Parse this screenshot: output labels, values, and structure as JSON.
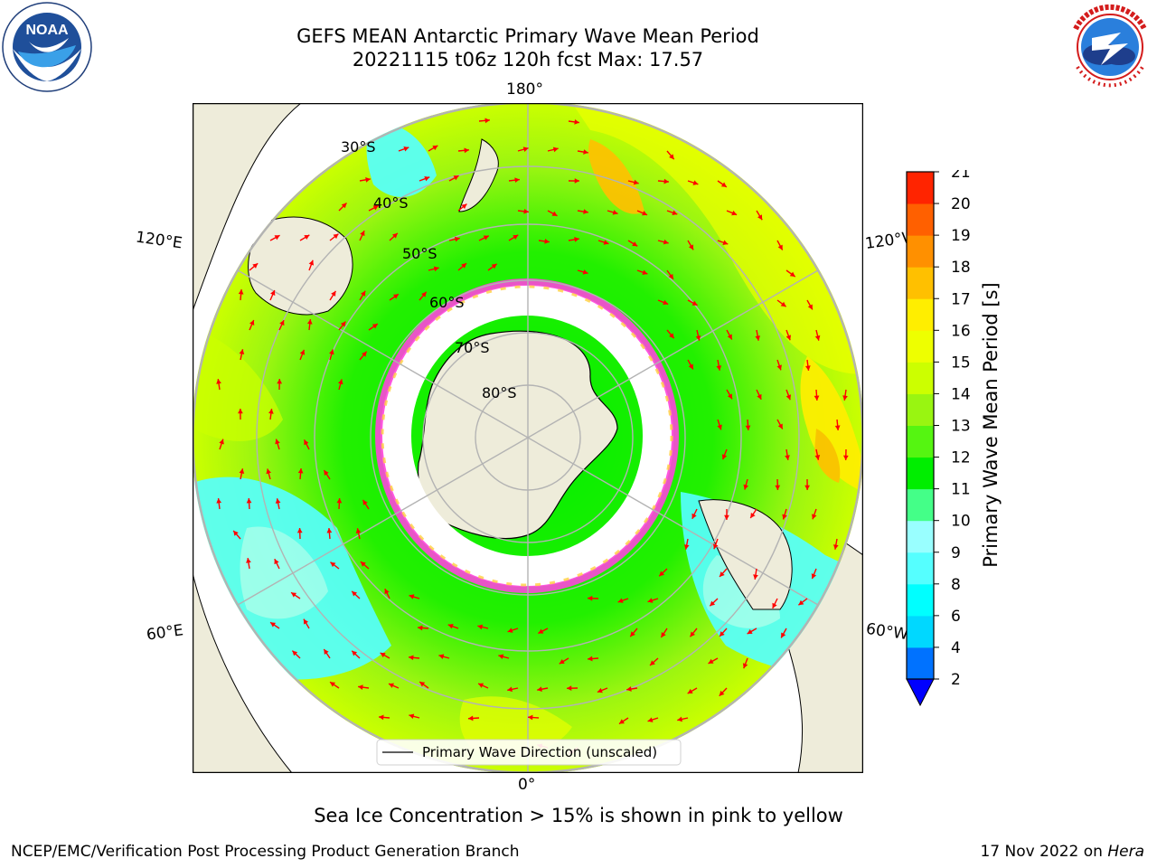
{
  "header": {
    "title_line1": "GEFS MEAN Antarctic Primary Wave Mean Period",
    "title_line2": "20221115 t06z 120h fcst   Max: 17.57"
  },
  "logos": {
    "left": {
      "icon": "noaa-logo-icon",
      "text": "NOAA",
      "ring_text": "NATIONAL OCEANIC AND ATMOSPHERIC ADMINISTRATION · U.S. DEPARTMENT OF COMMERCE"
    },
    "right": {
      "icon": "nws-logo-icon",
      "ring_text": "NATIONAL WEATHER SERVICE"
    }
  },
  "map": {
    "projection": "south-polar-stereographic",
    "longitude_labels": {
      "top": "180°",
      "bottom": "0°",
      "left_upper": "120°E",
      "left_lower": "60°E",
      "right_upper": "120°W",
      "right_lower": "60°W"
    },
    "latitude_labels": [
      "30°S",
      "40°S",
      "50°S",
      "60°S",
      "70°S",
      "80°S"
    ],
    "legend": {
      "label": "Primary Wave Direction (unscaled)"
    },
    "colors": {
      "land": "#eeecda",
      "ice_pink": "#ff44dd",
      "ice_yellow": "#ffd040",
      "arrow": "#ff0000",
      "grid": "#b3b3b3"
    }
  },
  "colorbar": {
    "label": "Primary Wave Mean Period [s]",
    "ticks": [
      "2",
      "4",
      "6",
      "8",
      "9",
      "10",
      "11",
      "12",
      "13",
      "14",
      "15",
      "16",
      "17",
      "18",
      "19",
      "20",
      "21"
    ],
    "colors": [
      "#0072ff",
      "#00d8ff",
      "#00ffff",
      "#55ffff",
      "#99ffff",
      "#44ff88",
      "#00ee00",
      "#55f511",
      "#99f511",
      "#ccff00",
      "#eeff00",
      "#ffee00",
      "#ffc000",
      "#ff9000",
      "#ff6000",
      "#ff2400",
      "#ff0000"
    ],
    "under_color": "#0000ff"
  },
  "footer": {
    "note": "Sea Ice Concentration > 15% is shown in pink to yellow",
    "left": "NCEP/EMC/Verification Post Processing Product Generation Branch",
    "right_prefix": "17 Nov 2022 on ",
    "right_machine": "Hera"
  }
}
